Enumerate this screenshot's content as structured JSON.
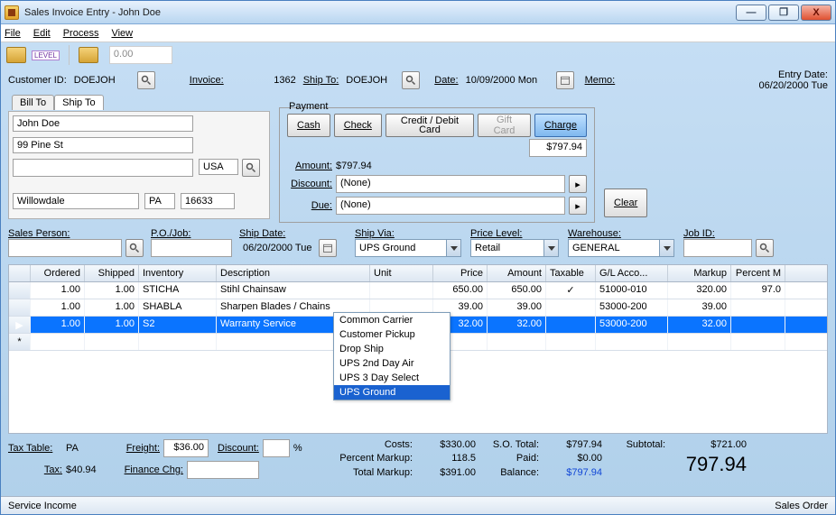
{
  "window": {
    "title": "Sales Invoice Entry - John Doe"
  },
  "menu": {
    "items": [
      "File",
      "Edit",
      "Process",
      "View"
    ]
  },
  "toolbar": {
    "amount": "0.00"
  },
  "header": {
    "customer_id_label": "Customer ID:",
    "customer_id": "DOEJOH",
    "invoice_label": "Invoice:",
    "invoice": "1362",
    "ship_to_label": "Ship To:",
    "ship_to": "DOEJOH",
    "date_label": "Date:",
    "date": "10/09/2000 Mon",
    "memo_label": "Memo:",
    "entry_date_label": "Entry Date:",
    "entry_date": "06/20/2000 Tue"
  },
  "tabs": {
    "bill_to": "Bill To",
    "ship_to": "Ship To"
  },
  "billto": {
    "name": "John Doe",
    "street": "99 Pine St",
    "city": "Willowdale",
    "state": "PA",
    "zip": "16633",
    "country": "USA"
  },
  "payment": {
    "legend": "Payment",
    "cash": "Cash",
    "check": "Check",
    "credit": "Credit / Debit Card",
    "gift": "Gift Card",
    "charge": "Charge",
    "charge_amount": "$797.94",
    "amount_label": "Amount:",
    "amount": "$797.94",
    "discount_label": "Discount:",
    "discount": "(None)",
    "due_label": "Due:",
    "due": "(None)",
    "clear": "Clear"
  },
  "mid": {
    "sales_person_label": "Sales Person:",
    "po_job_label": "P.O./Job:",
    "ship_date_label": "Ship Date:",
    "ship_date": "06/20/2000 Tue",
    "ship_via_label": "Ship Via:",
    "ship_via": "UPS Ground",
    "price_level_label": "Price Level:",
    "price_level": "Retail",
    "warehouse_label": "Warehouse:",
    "warehouse": "GENERAL",
    "job_id_label": "Job ID:"
  },
  "shipvia_options": [
    "Common Carrier",
    "Customer Pickup",
    "Drop Ship",
    "UPS 2nd Day Air",
    "UPS 3 Day Select",
    "UPS Ground"
  ],
  "grid": {
    "columns": [
      "",
      "Ordered",
      "Shipped",
      "Inventory",
      "Description",
      "Unit",
      "Price",
      "Amount",
      "Taxable",
      "G/L Acco...",
      "Markup",
      "Percent M"
    ],
    "rows": [
      {
        "ord": "1.00",
        "shp": "1.00",
        "inv": "STICHA",
        "desc": "Stihl Chainsaw",
        "unit": "",
        "price": "650.00",
        "amt": "650.00",
        "tax": "✓",
        "gl": "51000-010",
        "markup": "320.00",
        "pct": "97.0"
      },
      {
        "ord": "1.00",
        "shp": "1.00",
        "inv": "SHABLA",
        "desc": "Sharpen Blades /  Chains",
        "unit": "",
        "price": "39.00",
        "amt": "39.00",
        "tax": "",
        "gl": "53000-200",
        "markup": "39.00",
        "pct": ""
      },
      {
        "ord": "1.00",
        "shp": "1.00",
        "inv": "S2",
        "desc": "Warranty Service",
        "unit": "",
        "price": "32.00",
        "amt": "32.00",
        "tax": "",
        "gl": "53000-200",
        "markup": "32.00",
        "pct": ""
      }
    ]
  },
  "footer": {
    "tax_table_label": "Tax Table:",
    "tax_table": "PA",
    "freight_label": "Freight:",
    "freight": "$36.00",
    "discount_label": "Discount:",
    "discount_pct": "%",
    "tax_label": "Tax:",
    "tax": "$40.94",
    "finance_label": "Finance Chg:",
    "costs_label": "Costs:",
    "costs": "$330.00",
    "pct_markup_label": "Percent Markup:",
    "pct_markup": "118.5",
    "total_markup_label": "Total Markup:",
    "total_markup": "$391.00",
    "so_total_label": "S.O. Total:",
    "so_total": "$797.94",
    "paid_label": "Paid:",
    "paid": "$0.00",
    "balance_label": "Balance:",
    "balance": "$797.94",
    "subtotal_label": "Subtotal:",
    "subtotal": "$721.00",
    "grand_total": "797.94"
  },
  "status": {
    "left": "Service Income",
    "right": "Sales Order"
  }
}
